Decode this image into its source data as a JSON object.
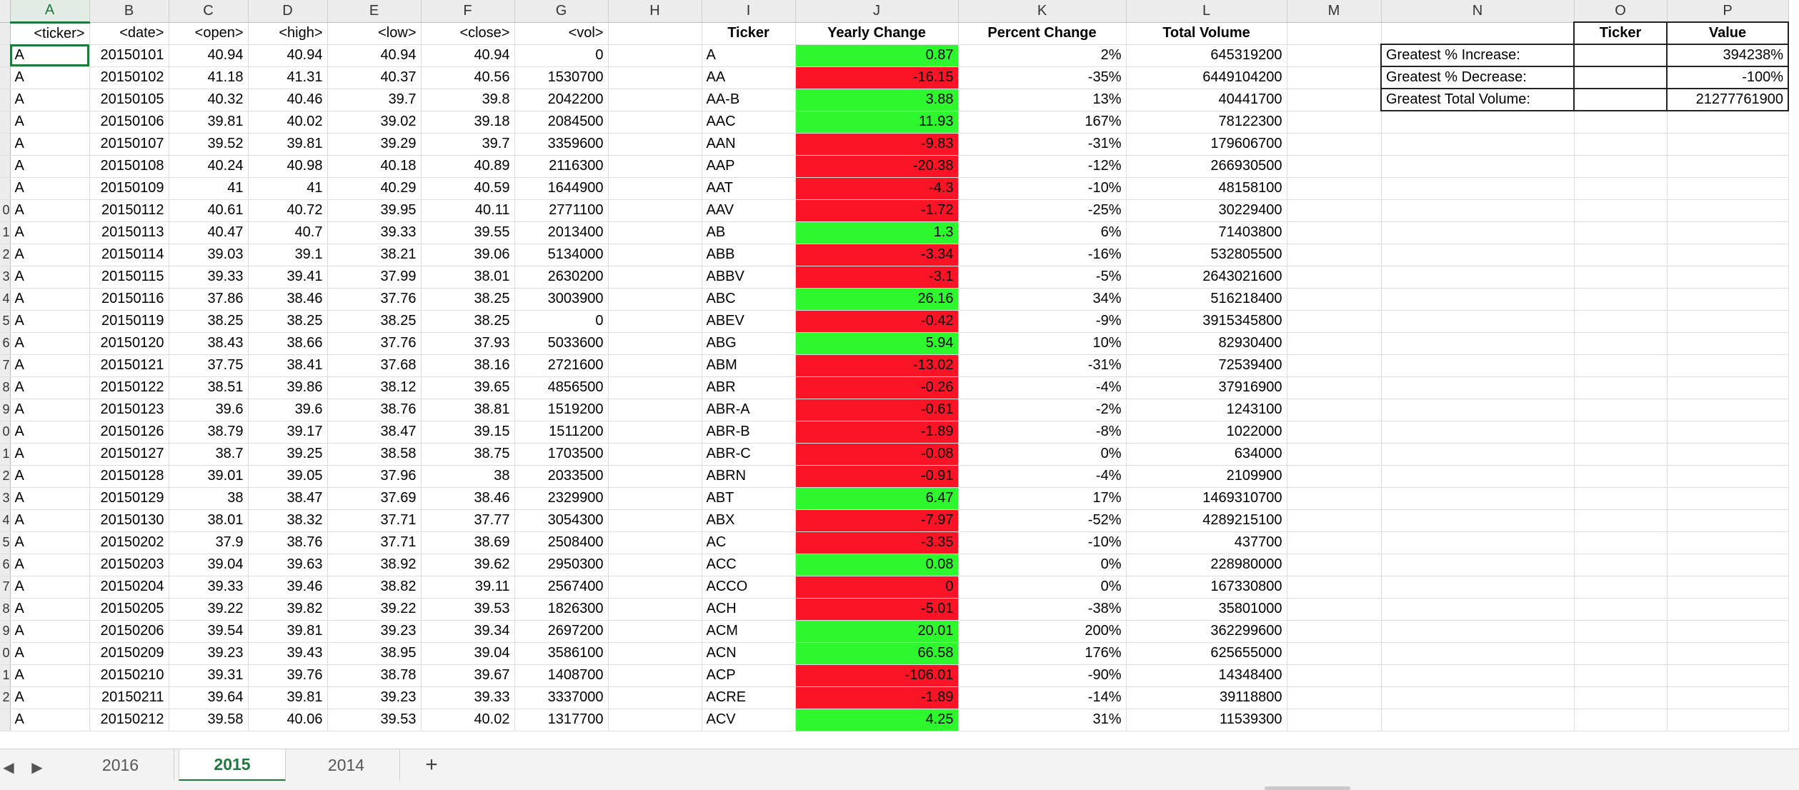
{
  "columns": [
    "A",
    "B",
    "C",
    "D",
    "E",
    "F",
    "G",
    "H",
    "I",
    "J",
    "K",
    "L",
    "M",
    "N",
    "O",
    "P"
  ],
  "active_column": "A",
  "row_numbers": [
    "",
    "",
    "",
    "",
    "",
    "",
    "",
    "",
    "",
    "0",
    "1",
    "2",
    "3",
    "4",
    "5",
    "6",
    "7",
    "8",
    "9",
    "0",
    "1",
    "2",
    "3",
    "4",
    "5",
    "6",
    "7",
    "8",
    "9",
    "0",
    "1",
    "2"
  ],
  "header_row": {
    "raw": [
      "<ticker>",
      "<date>",
      "<open>",
      "<high>",
      "<low>",
      "<close>",
      "<vol>"
    ],
    "summary": [
      "Ticker",
      "Yearly Change",
      "Percent Change",
      "Total Volume"
    ],
    "stats": [
      "Ticker",
      "Value"
    ]
  },
  "raw_rows": [
    [
      "A",
      "20150101",
      "40.94",
      "40.94",
      "40.94",
      "40.94",
      "0"
    ],
    [
      "A",
      "20150102",
      "41.18",
      "41.31",
      "40.37",
      "40.56",
      "1530700"
    ],
    [
      "A",
      "20150105",
      "40.32",
      "40.46",
      "39.7",
      "39.8",
      "2042200"
    ],
    [
      "A",
      "20150106",
      "39.81",
      "40.02",
      "39.02",
      "39.18",
      "2084500"
    ],
    [
      "A",
      "20150107",
      "39.52",
      "39.81",
      "39.29",
      "39.7",
      "3359600"
    ],
    [
      "A",
      "20150108",
      "40.24",
      "40.98",
      "40.18",
      "40.89",
      "2116300"
    ],
    [
      "A",
      "20150109",
      "41",
      "41",
      "40.29",
      "40.59",
      "1644900"
    ],
    [
      "A",
      "20150112",
      "40.61",
      "40.72",
      "39.95",
      "40.11",
      "2771100"
    ],
    [
      "A",
      "20150113",
      "40.47",
      "40.7",
      "39.33",
      "39.55",
      "2013400"
    ],
    [
      "A",
      "20150114",
      "39.03",
      "39.1",
      "38.21",
      "39.06",
      "5134000"
    ],
    [
      "A",
      "20150115",
      "39.33",
      "39.41",
      "37.99",
      "38.01",
      "2630200"
    ],
    [
      "A",
      "20150116",
      "37.86",
      "38.46",
      "37.76",
      "38.25",
      "3003900"
    ],
    [
      "A",
      "20150119",
      "38.25",
      "38.25",
      "38.25",
      "38.25",
      "0"
    ],
    [
      "A",
      "20150120",
      "38.43",
      "38.66",
      "37.76",
      "37.93",
      "5033600"
    ],
    [
      "A",
      "20150121",
      "37.75",
      "38.41",
      "37.68",
      "38.16",
      "2721600"
    ],
    [
      "A",
      "20150122",
      "38.51",
      "39.86",
      "38.12",
      "39.65",
      "4856500"
    ],
    [
      "A",
      "20150123",
      "39.6",
      "39.6",
      "38.76",
      "38.81",
      "1519200"
    ],
    [
      "A",
      "20150126",
      "38.79",
      "39.17",
      "38.47",
      "39.15",
      "1511200"
    ],
    [
      "A",
      "20150127",
      "38.7",
      "39.25",
      "38.58",
      "38.75",
      "1703500"
    ],
    [
      "A",
      "20150128",
      "39.01",
      "39.05",
      "37.96",
      "38",
      "2033500"
    ],
    [
      "A",
      "20150129",
      "38",
      "38.47",
      "37.69",
      "38.46",
      "2329900"
    ],
    [
      "A",
      "20150130",
      "38.01",
      "38.32",
      "37.71",
      "37.77",
      "3054300"
    ],
    [
      "A",
      "20150202",
      "37.9",
      "38.76",
      "37.71",
      "38.69",
      "2508400"
    ],
    [
      "A",
      "20150203",
      "39.04",
      "39.63",
      "38.92",
      "39.62",
      "2950300"
    ],
    [
      "A",
      "20150204",
      "39.33",
      "39.46",
      "38.82",
      "39.11",
      "2567400"
    ],
    [
      "A",
      "20150205",
      "39.22",
      "39.82",
      "39.22",
      "39.53",
      "1826300"
    ],
    [
      "A",
      "20150206",
      "39.54",
      "39.81",
      "39.23",
      "39.34",
      "2697200"
    ],
    [
      "A",
      "20150209",
      "39.23",
      "39.43",
      "38.95",
      "39.04",
      "3586100"
    ],
    [
      "A",
      "20150210",
      "39.31",
      "39.76",
      "38.78",
      "39.67",
      "1408700"
    ],
    [
      "A",
      "20150211",
      "39.64",
      "39.81",
      "39.23",
      "39.33",
      "3337000"
    ],
    [
      "A",
      "20150212",
      "39.58",
      "40.06",
      "39.53",
      "40.02",
      "1317700"
    ]
  ],
  "summary_rows": [
    [
      "A",
      "0.87",
      "2%",
      "645319200",
      "green"
    ],
    [
      "AA",
      "-16.15",
      "-35%",
      "6449104200",
      "red"
    ],
    [
      "AA-B",
      "3.88",
      "13%",
      "40441700",
      "green"
    ],
    [
      "AAC",
      "11.93",
      "167%",
      "78122300",
      "green"
    ],
    [
      "AAN",
      "-9.83",
      "-31%",
      "179606700",
      "red"
    ],
    [
      "AAP",
      "-20.38",
      "-12%",
      "266930500",
      "red"
    ],
    [
      "AAT",
      "-4.3",
      "-10%",
      "48158100",
      "red"
    ],
    [
      "AAV",
      "-1.72",
      "-25%",
      "30229400",
      "red"
    ],
    [
      "AB",
      "1.3",
      "6%",
      "71403800",
      "green"
    ],
    [
      "ABB",
      "-3.34",
      "-16%",
      "532805500",
      "red"
    ],
    [
      "ABBV",
      "-3.1",
      "-5%",
      "2643021600",
      "red"
    ],
    [
      "ABC",
      "26.16",
      "34%",
      "516218400",
      "green"
    ],
    [
      "ABEV",
      "-0.42",
      "-9%",
      "3915345800",
      "red"
    ],
    [
      "ABG",
      "5.94",
      "10%",
      "82930400",
      "green"
    ],
    [
      "ABM",
      "-13.02",
      "-31%",
      "72539400",
      "red"
    ],
    [
      "ABR",
      "-0.26",
      "-4%",
      "37916900",
      "red"
    ],
    [
      "ABR-A",
      "-0.61",
      "-2%",
      "1243100",
      "red"
    ],
    [
      "ABR-B",
      "-1.89",
      "-8%",
      "1022000",
      "red"
    ],
    [
      "ABR-C",
      "-0.08",
      "0%",
      "634000",
      "red"
    ],
    [
      "ABRN",
      "-0.91",
      "-4%",
      "2109900",
      "red"
    ],
    [
      "ABT",
      "6.47",
      "17%",
      "1469310700",
      "green"
    ],
    [
      "ABX",
      "-7.97",
      "-52%",
      "4289215100",
      "red"
    ],
    [
      "AC",
      "-3.35",
      "-10%",
      "437700",
      "red"
    ],
    [
      "ACC",
      "0.08",
      "0%",
      "228980000",
      "green"
    ],
    [
      "ACCO",
      "0",
      "0%",
      "167330800",
      "red"
    ],
    [
      "ACH",
      "-5.01",
      "-38%",
      "35801000",
      "red"
    ],
    [
      "ACM",
      "20.01",
      "200%",
      "362299600",
      "green"
    ],
    [
      "ACN",
      "66.58",
      "176%",
      "625655000",
      "green"
    ],
    [
      "ACP",
      "-106.01",
      "-90%",
      "14348400",
      "red"
    ],
    [
      "ACRE",
      "-1.89",
      "-14%",
      "39118800",
      "red"
    ],
    [
      "ACV",
      "4.25",
      "31%",
      "11539300",
      "green"
    ]
  ],
  "stats_rows": [
    [
      "Greatest % Increase:",
      "",
      "394238%"
    ],
    [
      "Greatest % Decrease:",
      "",
      "-100%"
    ],
    [
      "Greatest Total Volume:",
      "",
      "21277761900"
    ]
  ],
  "tabs": [
    "2016",
    "2015",
    "2014"
  ],
  "active_tab": "2015",
  "add_sheet_label": "+",
  "nav_prev": "◀",
  "nav_next": "▶",
  "colors": {
    "positive_fill": "#2ef72e",
    "negative_fill": "#fa1425",
    "accent": "#1e7a3c"
  }
}
